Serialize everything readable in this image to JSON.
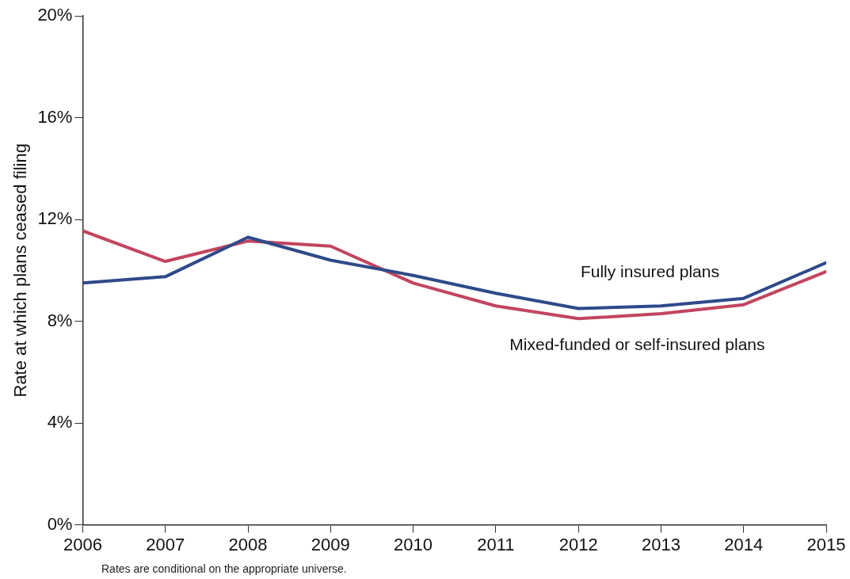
{
  "chart_data": {
    "type": "line",
    "ylabel": "Rate at which plans ceased filing",
    "x": [
      2006,
      2007,
      2008,
      2009,
      2010,
      2011,
      2012,
      2013,
      2014,
      2015
    ],
    "xlim": [
      2006,
      2015
    ],
    "xticks": [
      2006,
      2007,
      2008,
      2009,
      2010,
      2011,
      2012,
      2013,
      2014,
      2015
    ],
    "ylim": [
      0,
      20
    ],
    "yticks": [
      {
        "value": 0,
        "label": "0%"
      },
      {
        "value": 4,
        "label": "4%"
      },
      {
        "value": 8,
        "label": "8%"
      },
      {
        "value": 12,
        "label": "12%"
      },
      {
        "value": 16,
        "label": "16%"
      },
      {
        "value": 20,
        "label": "20%"
      }
    ],
    "series": [
      {
        "name": "Fully insured plans",
        "color": "#2f4a8a",
        "values": [
          9.5,
          9.75,
          11.3,
          10.4,
          9.8,
          9.1,
          8.5,
          8.6,
          8.9,
          10.3
        ]
      },
      {
        "name": "Mixed-funded or self-insured plans",
        "color": "#c2455f",
        "values": [
          11.55,
          10.35,
          11.15,
          10.95,
          9.5,
          8.6,
          8.1,
          8.3,
          8.65,
          9.95
        ]
      }
    ],
    "grid": false,
    "legend": false,
    "marker": "none",
    "line_style": "solid",
    "annotations": [
      "Rates are conditional on the appropriate universe."
    ]
  }
}
